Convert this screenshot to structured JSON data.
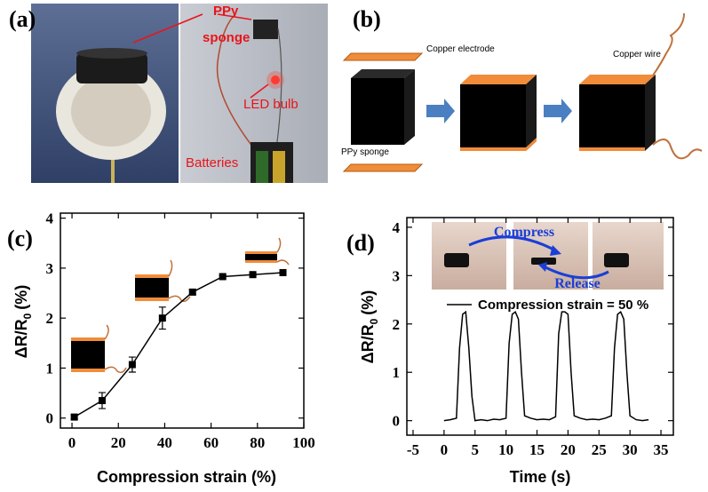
{
  "figure": {
    "panel_labels": [
      "(a)",
      "(b)",
      "(c)",
      "(d)"
    ],
    "a": {
      "sponge_label": [
        "PPy",
        "sponge"
      ],
      "led_label": "LED bulb",
      "battery_label": "Batteries"
    },
    "b": {
      "electrode_label": "Copper electrode",
      "sponge_label": "PPy sponge",
      "wire_label": "Copper wire"
    }
  },
  "chart_data": [
    {
      "type": "line",
      "markers": "square",
      "color": "#000000",
      "xlabel": "Compression strain (%)",
      "ylabel": {
        "main": "ΔR/R",
        "sub": "0",
        "unit": "(%)"
      },
      "x": [
        1,
        13,
        26,
        39,
        52,
        65,
        78,
        91
      ],
      "series": [
        {
          "values": [
            0.02,
            0.35,
            1.07,
            2.0,
            2.52,
            2.83,
            2.87,
            2.91
          ],
          "errors": [
            0.04,
            0.16,
            0.15,
            0.22,
            0.05,
            0.03,
            0.03,
            0.04
          ],
          "color": "#000000"
        }
      ],
      "xlim": [
        -5,
        100
      ],
      "ylim": [
        -0.2,
        4.1
      ],
      "xticks": [
        0,
        20,
        40,
        60,
        80,
        100
      ],
      "yticks": [
        0,
        1,
        2,
        3,
        4
      ]
    },
    {
      "type": "line",
      "color": "#000000",
      "xlabel": "Time (s)",
      "ylabel": {
        "main": "ΔR/R",
        "sub": "0",
        "unit": "(%)"
      },
      "x": [
        0,
        1,
        2,
        2.5,
        3,
        3.5,
        4,
        4.5,
        5,
        6,
        7,
        8,
        9,
        10,
        10.5,
        11,
        11.5,
        12,
        12.5,
        13,
        14,
        15,
        16,
        17,
        18,
        18.5,
        19,
        19.5,
        20,
        20.5,
        21,
        22,
        23,
        24,
        25,
        26,
        27,
        27.5,
        28,
        28.5,
        29,
        29.5,
        30,
        31,
        32,
        33
      ],
      "series": [
        {
          "name": "Compression strain = 50 %",
          "color": "#000000",
          "values": [
            0,
            0.02,
            0.05,
            1.5,
            2.2,
            2.25,
            1.5,
            0.5,
            0,
            0.02,
            0,
            0.03,
            0.02,
            0.05,
            1.6,
            2.2,
            2.25,
            2.1,
            1,
            0.1,
            0.05,
            0.02,
            0.03,
            0.02,
            0.08,
            1.8,
            2.25,
            2.25,
            2.2,
            1.0,
            0.1,
            0.05,
            0.02,
            0.03,
            0.02,
            0.05,
            0.1,
            1.5,
            2.2,
            2.25,
            2.1,
            1,
            0.1,
            0.02,
            0,
            0.02
          ]
        }
      ],
      "annotations": [
        "Compress",
        "Release"
      ],
      "xlim": [
        -6,
        37
      ],
      "ylim": [
        -0.3,
        4.2
      ],
      "xticks": [
        -5,
        0,
        5,
        10,
        15,
        20,
        25,
        30,
        35
      ],
      "yticks": [
        0,
        1,
        2,
        3,
        4
      ]
    }
  ]
}
